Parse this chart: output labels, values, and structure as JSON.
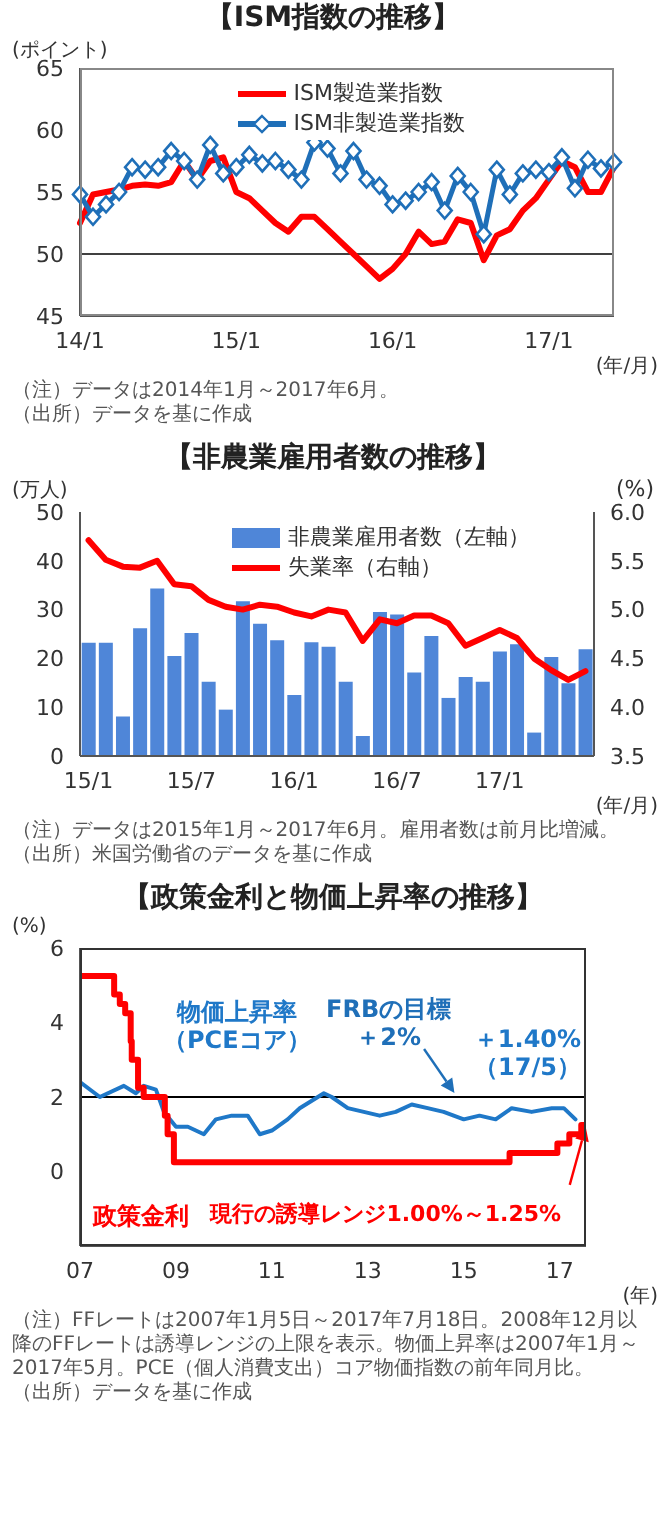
{
  "chart_data": [
    {
      "type": "line",
      "title": "【ISM指数の推移】",
      "ylabel": "(ポイント)",
      "xlabel": "(年/月)",
      "categories": [
        "14/1",
        null,
        null,
        null,
        null,
        null,
        null,
        null,
        null,
        null,
        null,
        null,
        "15/1",
        null,
        null,
        null,
        null,
        null,
        null,
        null,
        null,
        null,
        null,
        null,
        "16/1",
        null,
        null,
        null,
        null,
        null,
        null,
        null,
        null,
        null,
        null,
        null,
        "17/1",
        null,
        null,
        null,
        null,
        null
      ],
      "series": [
        {
          "name": "ISM製造業指数",
          "color": "#ff0000",
          "marker": "none",
          "values": [
            52.5,
            54.8,
            55,
            55.2,
            55.5,
            55.6,
            55.5,
            55.8,
            57.5,
            56,
            57.5,
            57.8,
            55,
            54.5,
            53.5,
            52.5,
            51.8,
            53,
            53,
            52,
            51,
            50,
            49,
            48,
            48.8,
            50,
            51.8,
            50.8,
            51,
            52.8,
            52.5,
            49.5,
            51.5,
            52,
            53.5,
            54.5,
            56,
            57.5,
            57,
            55,
            55,
            57
          ]
        },
        {
          "name": "ISM非製造業指数",
          "color": "#1f6fb8",
          "marker": "diamond",
          "values": [
            54.8,
            53,
            54,
            55,
            57,
            56.8,
            57,
            58.3,
            57.5,
            56,
            58.8,
            56.5,
            57,
            58,
            57.3,
            57.5,
            56.8,
            56,
            59,
            58.5,
            56.5,
            58.3,
            56,
            55.5,
            54,
            54.3,
            55,
            55.8,
            53.5,
            56.3,
            55,
            51.6,
            56.8,
            54.8,
            56.5,
            56.8,
            56.6,
            57.8,
            55.3,
            57.6,
            56.9,
            57.4
          ]
        }
      ],
      "ylim": [
        45,
        65
      ],
      "yticks": [
        45,
        50,
        55,
        60,
        65
      ],
      "ref_lines": [
        {
          "axis": "y",
          "value": 50,
          "color": "#404040"
        }
      ],
      "legend": "top",
      "annotations": [
        "（注）データは2014年1月～2017年6月。",
        "（出所）データを基に作成"
      ]
    },
    {
      "type": "bar",
      "title": "【非農業雇用者数の推移】",
      "ylabel": "(万人)",
      "y2label": "(%)",
      "xlabel": "(年/月)",
      "categories": [
        "15/1",
        null,
        null,
        null,
        null,
        null,
        "15/7",
        null,
        null,
        null,
        null,
        null,
        "16/1",
        null,
        null,
        null,
        null,
        null,
        "16/7",
        null,
        null,
        null,
        null,
        null,
        "17/1",
        null,
        null,
        null,
        null,
        null
      ],
      "series": [
        {
          "name": "非農業雇用者数（左軸）",
          "color": "#4f86d8",
          "values": [
            23.2,
            23.2,
            8.1,
            26.2,
            34.3,
            20.5,
            25.2,
            15.2,
            9.5,
            31.7,
            27.1,
            23.7,
            12.5,
            23.3,
            22.4,
            15.2,
            4.1,
            29.5,
            29,
            17.1,
            24.6,
            11.9,
            16.2,
            15.2,
            21.4,
            22.9,
            4.8,
            20.3,
            14.9,
            21.9
          ]
        },
        {
          "name": "失業率（右軸）",
          "type": "line",
          "axis": "y2",
          "color": "#ff0000",
          "values": [
            5.71,
            5.51,
            5.44,
            5.43,
            5.5,
            5.26,
            5.24,
            5.1,
            5.03,
            5.0,
            5.05,
            5.03,
            4.97,
            4.93,
            5.0,
            4.97,
            4.68,
            4.9,
            4.86,
            4.94,
            4.94,
            4.86,
            4.63,
            4.71,
            4.79,
            4.71,
            4.5,
            4.38,
            4.28,
            4.37
          ]
        }
      ],
      "ylim": [
        0,
        50
      ],
      "yticks": [
        0,
        10,
        20,
        30,
        40,
        50
      ],
      "y2lim": [
        3.5,
        6.0
      ],
      "y2ticks": [
        3.5,
        {
          "value": 4,
          "label": "4.0"
        },
        4.5,
        {
          "value": 5,
          "label": "5.0"
        },
        5.5,
        {
          "value": 6,
          "label": "6.0"
        }
      ],
      "legend": "top",
      "annotations": [
        "（注）データは2015年1月～2017年6月。雇用者数は前月比増減。",
        "（出所）米国労働省のデータを基に作成"
      ]
    },
    {
      "type": "line",
      "title": "【政策金利と物価上昇率の推移】",
      "ylabel": "(%)",
      "xlabel": "(年)",
      "series": [
        {
          "name": "物価上昇率（PCEコア）",
          "color": "#1f78c8",
          "x": [
            "2007-01",
            "2007-06",
            "2007-12",
            "2008-03",
            "2008-05",
            "2008-08",
            "2008-10",
            "2009-01",
            "2009-04",
            "2009-08",
            "2009-11",
            "2010-03",
            "2010-07",
            "2010-10",
            "2011-01",
            "2011-05",
            "2011-08",
            "2011-11",
            "2012-02",
            "2012-04",
            "2012-08",
            "2012-12",
            "2013-04",
            "2013-08",
            "2013-12",
            "2014-04",
            "2014-08",
            "2015-01",
            "2015-05",
            "2015-09",
            "2016-01",
            "2016-06",
            "2016-11",
            "2017-02",
            "2017-05"
          ],
          "values": [
            2.4,
            2.0,
            2.3,
            2.1,
            2.3,
            2.2,
            1.6,
            1.2,
            1.2,
            1.0,
            1.4,
            1.5,
            1.5,
            1.0,
            1.1,
            1.4,
            1.7,
            1.9,
            2.1,
            2.0,
            1.7,
            1.6,
            1.5,
            1.6,
            1.8,
            1.7,
            1.6,
            1.4,
            1.5,
            1.4,
            1.7,
            1.6,
            1.7,
            1.7,
            1.4
          ]
        },
        {
          "name": "政策金利",
          "type": "step",
          "color": "#ff0000",
          "x": [
            "2007-01-05",
            "2007-09-18",
            "2007-10-31",
            "2007-12-11",
            "2008-01-22",
            "2008-01-30",
            "2008-03-18",
            "2008-04-30",
            "2008-10-08",
            "2008-10-29",
            "2008-12-16",
            "2015-12-16",
            "2016-12-14",
            "2017-03-15",
            "2017-06-14",
            "2017-07-18"
          ],
          "values": [
            5.25,
            4.75,
            4.5,
            4.25,
            3.5,
            3,
            2.25,
            2,
            1.5,
            1,
            0.25,
            0.5,
            0.75,
            1,
            1.25,
            1.25
          ]
        }
      ],
      "xlim": [
        "2007-01-01",
        "2017-07-20"
      ],
      "xticks": [
        {
          "value": "2007-01-01",
          "label": "07"
        },
        {
          "value": "2009-01-01",
          "label": "09"
        },
        {
          "value": "2011-01-01",
          "label": "11"
        },
        {
          "value": "2013-01-01",
          "label": "13"
        },
        {
          "value": "2015-01-01",
          "label": "15"
        },
        {
          "value": "2017-01-01",
          "label": "17"
        }
      ],
      "ylim": [
        -2,
        6
      ],
      "yticks": [
        0,
        2,
        4,
        6
      ],
      "ref_lines": [
        {
          "axis": "y",
          "value": 2,
          "label": "FRBの目標＋2%",
          "color": "#000000"
        }
      ],
      "annotations": [
        {
          "text": "＋1.40%（17/5）",
          "x": "2017-05",
          "y": 1.4
        },
        {
          "text": "現行の誘導レンジ1.00%～1.25%",
          "x": "2017-07-18",
          "y": 1.25
        },
        "（注）FFレートは2007年1月5日～2017年7月18日。2008年12月以降のFFレートは誘導レンジの上限を表示。物価上昇率は2007年1月～2017年5月。PCE（個人消費支出）コア物価指数の前年同月比。",
        "（出所）データを基に作成"
      ]
    }
  ]
}
